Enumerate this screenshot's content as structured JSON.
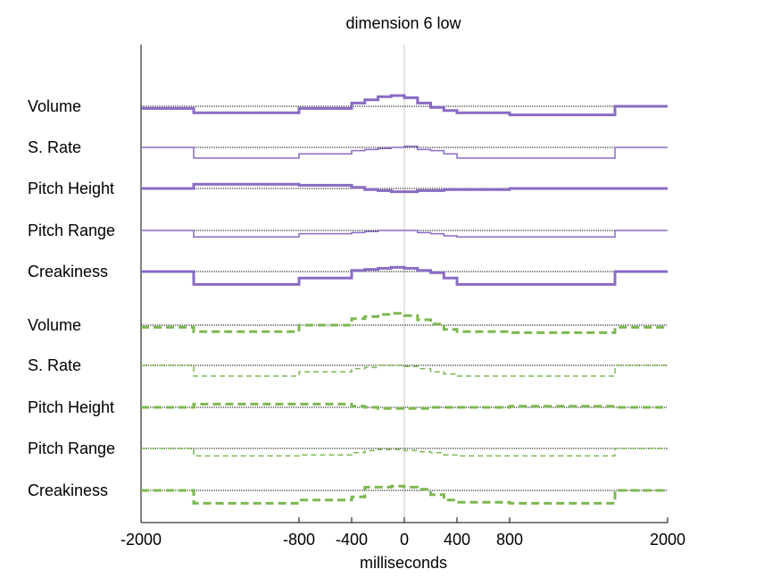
{
  "chart_data": {
    "type": "line",
    "title": "dimension  6 low",
    "xlabel": "milliseconds",
    "ylabel": "",
    "xlim": [
      -2000,
      2000
    ],
    "xticks": [
      -2000,
      -800,
      -400,
      0,
      400,
      800,
      2000
    ],
    "xtick_labels": [
      "-2000",
      "-800",
      "-400",
      "0",
      "400",
      "800",
      "2000"
    ],
    "grid": false,
    "colors": {
      "purple": "#8a6bc4",
      "green": "#7cb850",
      "baseline": "#000000",
      "zero_line": "#c8c8c8"
    },
    "x_edges": [
      -2000,
      -1600,
      -800,
      -400,
      -300,
      -200,
      -100,
      0,
      100,
      200,
      300,
      400,
      800,
      1600,
      2000
    ],
    "rows": [
      {
        "label": "Volume",
        "group": "purple",
        "style": "thick-solid",
        "values": [
          -0.2,
          -0.6,
          -0.2,
          0.3,
          0.6,
          0.9,
          1.0,
          0.8,
          0.3,
          -0.1,
          -0.4,
          -0.6,
          -0.8,
          0.0
        ]
      },
      {
        "label": "S. Rate",
        "group": "purple",
        "style": "thin-solid",
        "values": [
          0.0,
          -1.0,
          -0.6,
          -0.3,
          -0.2,
          -0.1,
          0.0,
          0.1,
          -0.2,
          -0.3,
          -0.6,
          -1.0,
          -1.0,
          0.0
        ]
      },
      {
        "label": "Pitch Height",
        "group": "purple",
        "style": "thick-solid",
        "values": [
          0.0,
          0.4,
          0.3,
          0.1,
          -0.1,
          -0.2,
          -0.3,
          -0.3,
          -0.2,
          -0.2,
          -0.1,
          -0.1,
          0.0,
          0.0
        ]
      },
      {
        "label": "Pitch Range",
        "group": "purple",
        "style": "thin-solid",
        "values": [
          0.0,
          -0.6,
          -0.3,
          -0.2,
          -0.1,
          0.0,
          0.0,
          0.0,
          -0.2,
          -0.3,
          -0.5,
          -0.6,
          -0.6,
          0.0
        ]
      },
      {
        "label": "Creakiness",
        "group": "purple",
        "style": "thick-solid",
        "values": [
          0.0,
          -1.2,
          -0.6,
          0.1,
          0.2,
          0.3,
          0.4,
          0.3,
          0.1,
          -0.1,
          -0.6,
          -1.2,
          -1.2,
          0.0
        ]
      },
      {
        "label": "Volume",
        "group": "green",
        "style": "thick-dashed",
        "values": [
          -0.2,
          -0.6,
          0.0,
          0.6,
          0.8,
          1.0,
          1.1,
          0.9,
          0.5,
          0.1,
          -0.4,
          -0.6,
          -0.7,
          -0.2
        ]
      },
      {
        "label": "S. Rate",
        "group": "green",
        "style": "thin-dashed",
        "values": [
          0.0,
          -1.0,
          -0.6,
          -0.3,
          -0.2,
          0.0,
          0.0,
          -0.1,
          -0.3,
          -0.6,
          -0.8,
          -1.0,
          -1.0,
          0.0
        ]
      },
      {
        "label": "Pitch Height",
        "group": "green",
        "style": "thick-dashed",
        "values": [
          0.0,
          0.3,
          0.3,
          0.1,
          0.0,
          -0.1,
          -0.1,
          -0.1,
          -0.1,
          0.0,
          0.0,
          0.0,
          0.1,
          0.0
        ]
      },
      {
        "label": "Pitch Range",
        "group": "green",
        "style": "thin-dashed",
        "values": [
          0.0,
          -0.7,
          -0.6,
          -0.4,
          -0.2,
          -0.1,
          -0.1,
          -0.2,
          -0.3,
          -0.4,
          -0.6,
          -0.7,
          -0.7,
          0.0
        ]
      },
      {
        "label": "Creakiness",
        "group": "green",
        "style": "thick-dashed",
        "values": [
          0.0,
          -1.2,
          -0.9,
          -0.6,
          0.3,
          0.3,
          0.4,
          0.3,
          0.1,
          -0.4,
          -0.9,
          -1.1,
          -1.2,
          0.0
        ]
      }
    ]
  }
}
